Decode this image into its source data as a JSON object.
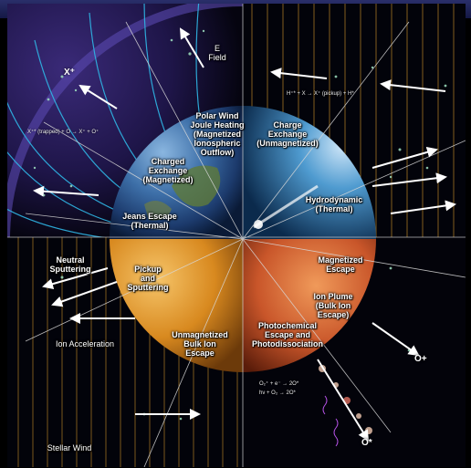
{
  "labels": {
    "e_field": "E\nField",
    "polar_wind": "Polar Wind\nJoule Heating\n(Magnetized\nIonospheric\nOutflow)",
    "charge_exchange": "Charge\nExchange\n(Unmagnetized)",
    "charged_exchange": "Charged\nExchange\n(Magnetized)",
    "jeans_escape": "Jeans Escape\n(Thermal)",
    "hydrodynamic": "Hydrodynamic\n(Thermal)",
    "neutral_sputtering": "Neutral\nSputtering",
    "pickup_sputtering": "Pickup\nand\nSputtering",
    "magnetized_escape": "Magnetized\nEscape",
    "ion_plume": "Ion Plume\n(Bulk Ion\nEscape)",
    "ion_acceleration": "Ion Acceleration",
    "unmagnetized_bulk": "Unmagnetized\nBulk Ion\nEscape",
    "photochemical": "Photochemical\nEscape and\nPhotodissociation",
    "stellar_wind": "Stellar Wind"
  },
  "ions": {
    "x_plus": "X⁺",
    "o_plus": "O+",
    "o_star": "O*"
  },
  "equations": {
    "x_trapped": "X⁺* (trapped) + O → X⁺ + O⁺",
    "pickup": "H⁺* + X → X⁺ (pickup) + H*",
    "dissoc_recomb": "O₂⁺ + e⁻ → 2O*",
    "photodissoc": "hν + O₂ → 2O*"
  },
  "colors": {
    "field_line": "#2fb7e6",
    "solar_wind_line": "#d99a2b",
    "arrow": "#ffffff"
  }
}
